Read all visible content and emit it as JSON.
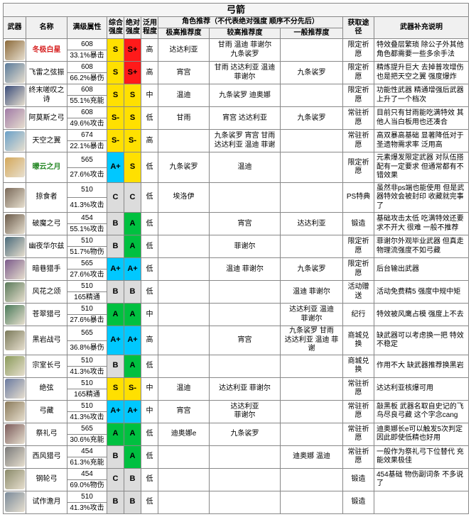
{
  "title": "弓箭",
  "headers": {
    "weapon": "武器",
    "name": "名称",
    "maxstat": "满级属性",
    "overall": "综合\n强度",
    "absolute": "绝对\n强度",
    "util": "泛用\n程度",
    "rec_group": "角色推荐（不代表绝对强度 顺序不分先后）",
    "rec_hi": "极高推荐度",
    "rec_mid": "较高推荐度",
    "rec_lo": "一般推荐度",
    "source": "获取途径",
    "notes": "武器补充说明"
  },
  "tier_colors": {
    "S+": "#ff1a1a",
    "S": "#ffe000",
    "S-": "#ffe000",
    "A+": "#00c8ff",
    "A": "#00c040",
    "B": "#dcdcdc",
    "C": "#dcdcdc"
  },
  "name_colors": {
    "red": "#d62020",
    "green": "#2a8a2a",
    "default": "#000000"
  },
  "icon_colors": [
    "#8c6a3a",
    "#5a7a9a",
    "#3a4c7a",
    "#a07aa6",
    "#6aa0c8",
    "#d4a85a",
    "#7a6a5a",
    "#6a5a4a",
    "#4a6a7a",
    "#7a5a8a",
    "#5a7a5a",
    "#4a7a5a",
    "#7a7a5a",
    "#8a9a5a",
    "#6a7aa0",
    "#8a7a5a",
    "#7a5a5a",
    "#7a7a7a",
    "#8a8a6a",
    "#7a8a9a"
  ],
  "rows": [
    {
      "name": "冬极白星",
      "nameColor": "red",
      "s1": "608",
      "s2": "33.1%暴击",
      "t1": "S",
      "t2": "S+",
      "util": "高",
      "r1": "达达利亚",
      "r2": "甘雨 温迪 菲谢尔\n九条裟罗",
      "r3": "",
      "src": "限定祈愿",
      "desc": "特效叠层繁琐 除公子外其他角色都需要一些多余手法"
    },
    {
      "name": "飞雷之弦振",
      "nameColor": "default",
      "s1": "608",
      "s2": "66.2%暴伤",
      "t1": "S",
      "t2": "S+",
      "util": "高",
      "r1": "宵宫",
      "r2": "甘雨 达达利亚 温迪\n菲谢尔",
      "r3": "九条裟罗",
      "src": "限定祈愿",
      "desc": "精炼提升巨大 去掉普攻增伤也是把天空之翼 强度爆炸"
    },
    {
      "name": "终末嗟叹之诗",
      "nameColor": "default",
      "s1": "608",
      "s2": "55.1%充能",
      "t1": "S",
      "t2": "S",
      "util": "中",
      "r1": "温迪",
      "r2": "九条裟罗 迪奥娜",
      "r3": "",
      "src": "限定祈愿",
      "desc": "功能性武器 精通增强后武器上升了一个档次"
    },
    {
      "name": "阿莫斯之弓",
      "nameColor": "default",
      "s1": "608",
      "s2": "49.6%攻击",
      "t1": "S-",
      "t2": "S",
      "util": "低",
      "r1": "甘雨",
      "r2": "宵宫 达达利亚",
      "r3": "九条裟罗",
      "src": "常驻祈愿",
      "desc": "目前只有甘雨能吃满特效 其他人当白板用也还凑合"
    },
    {
      "name": "天空之翼",
      "nameColor": "default",
      "s1": "674",
      "s2": "22.1%暴击",
      "t1": "S-",
      "t2": "S-",
      "util": "高",
      "r1": "",
      "r2": "九条裟罗 宵宫 甘雨\n达达利亚 温迪 菲谢",
      "r3": "",
      "src": "常驻祈愿",
      "desc": "高双暴高基础 显著降低对于圣遗物需求率 泛用高"
    },
    {
      "name": "曚云之月",
      "nameColor": "green",
      "s1": "565",
      "s2": "27.6%攻击",
      "t1": "A+",
      "t2": "S",
      "util": "低",
      "r1": "九条裟罗",
      "r2": "温迪",
      "r3": "",
      "src": "限定祈愿",
      "desc": "元素爆发限定武器 对队伍搭配有一定要求 但通常都有不错效果"
    },
    {
      "name": "掠食者",
      "nameColor": "default",
      "s1": "510",
      "s2": "41.3%攻击",
      "t1": "C",
      "t2": "C",
      "util": "低",
      "r1": "埃洛伊",
      "r2": "",
      "r3": "",
      "src": "PS特典",
      "desc": "虽然非ps端也能使用 但是武器特效会被封印 收藏就完事了"
    },
    {
      "name": "破魔之弓",
      "nameColor": "default",
      "s1": "454",
      "s2": "55.1%攻击",
      "t1": "B",
      "t2": "A",
      "util": "低",
      "r1": "",
      "r2": "宵宫",
      "r3": "达达利亚",
      "src": "锻造",
      "desc": "基础攻击太低 吃满特效还要求不开大 很难 一般不推荐"
    },
    {
      "name": "幽夜华尔兹",
      "nameColor": "default",
      "s1": "510",
      "s2": "51.7%物伤",
      "t1": "B",
      "t2": "A",
      "util": "低",
      "r1": "",
      "r2": "菲谢尔",
      "r3": "",
      "src": "限定祈愿",
      "desc": "菲谢尔外观毕业武器 但真走物理流强度不如弓藏"
    },
    {
      "name": "暗巷猎手",
      "nameColor": "default",
      "s1": "565",
      "s2": "27.6%攻击",
      "t1": "A+",
      "t2": "A+",
      "util": "低",
      "r1": "",
      "r2": "温迪 菲谢尔",
      "r3": "九条裟罗",
      "src": "限定祈愿",
      "desc": "后台输出武器"
    },
    {
      "name": "风花之颂",
      "nameColor": "default",
      "s1": "510",
      "s2": "165精通",
      "t1": "B",
      "t2": "B",
      "util": "低",
      "r1": "",
      "r2": "",
      "r3": "温迪 菲谢尔",
      "src": "活动赠送",
      "desc": "活动免费精5 强度中规中矩"
    },
    {
      "name": "苍翠猎弓",
      "nameColor": "default",
      "s1": "510",
      "s2": "27.6%暴击",
      "t1": "A",
      "t2": "A",
      "util": "中",
      "r1": "",
      "r2": "",
      "r3": "达达利亚 温迪\n菲谢尔",
      "src": "纪行",
      "desc": "特效被风鹰占模 强度上不去"
    },
    {
      "name": "黑岩战弓",
      "nameColor": "default",
      "s1": "565",
      "s2": "36.8%暴伤",
      "t1": "A+",
      "t2": "A+",
      "util": "高",
      "r1": "",
      "r2": "宵宫",
      "r3": "九条裟罗 甘雨\n达达利亚 温迪 菲谢",
      "src": "商城兑换",
      "desc": "缺武器可以考虑换一把 特效不稳定"
    },
    {
      "name": "宗室长弓",
      "nameColor": "default",
      "s1": "510",
      "s2": "41.3%攻击",
      "t1": "B",
      "t2": "A",
      "util": "低",
      "r1": "",
      "r2": "",
      "r3": "",
      "src": "商城兑换",
      "desc": "作用不大 缺武器推荐换黑岩"
    },
    {
      "name": "绝弦",
      "nameColor": "default",
      "s1": "510",
      "s2": "165精通",
      "t1": "S",
      "t2": "S-",
      "util": "中",
      "r1": "温迪",
      "r2": "达达利亚 菲谢尔",
      "r3": "",
      "src": "常驻祈愿",
      "desc": "达达利亚核爆可用"
    },
    {
      "name": "弓藏",
      "nameColor": "default",
      "s1": "510",
      "s2": "41.3%攻击",
      "t1": "A+",
      "t2": "A+",
      "util": "中",
      "r1": "宵宫",
      "r2": "达达利亚\n菲谢尔",
      "r3": "",
      "src": "常驻祈愿",
      "desc": "敲黑板 武器名取自史记的飞鸟尽良弓藏 这个字念cang"
    },
    {
      "name": "祭礼弓",
      "nameColor": "default",
      "s1": "565",
      "s2": "30.6%充能",
      "t1": "A",
      "t2": "A",
      "util": "低",
      "r1": "迪奥娜e",
      "r2": "九条裟罗",
      "r3": "",
      "src": "常驻祈愿",
      "desc": "迪奥娜长e可以触发5次判定 因此即使低精也好用"
    },
    {
      "name": "西风猎弓",
      "nameColor": "default",
      "s1": "454",
      "s2": "61.3%充能",
      "t1": "B",
      "t2": "A",
      "util": "低",
      "r1": "",
      "r2": "",
      "r3": "迪奥娜 温迪",
      "src": "常驻祈愿",
      "desc": "一般作为祭礼弓下位替代 充能效果极佳"
    },
    {
      "name": "钢轮弓",
      "nameColor": "default",
      "s1": "454",
      "s2": "69.0%物伤",
      "t1": "C",
      "t2": "B",
      "util": "低",
      "r1": "",
      "r2": "",
      "r3": "",
      "src": "锻造",
      "desc": "454基础 物伤副词条 不多说了"
    },
    {
      "name": "试作澹月",
      "nameColor": "default",
      "s1": "510",
      "s2": "41.3%攻击",
      "t1": "B",
      "t2": "B",
      "util": "低",
      "r1": "",
      "r2": "",
      "r3": "",
      "src": "锻造",
      "desc": ""
    }
  ]
}
